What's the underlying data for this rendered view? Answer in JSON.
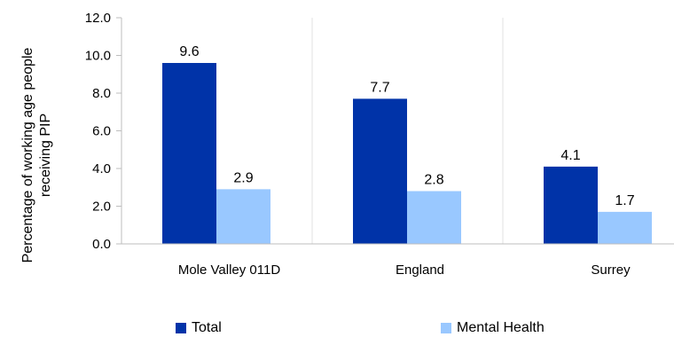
{
  "chart_data": {
    "type": "bar",
    "title": "",
    "xlabel": "",
    "ylabel_lines": [
      "Percentage of working age people",
      "receiving PIP"
    ],
    "categories": [
      "Mole Valley 011D",
      "England",
      "Surrey"
    ],
    "ylim": [
      0,
      12
    ],
    "yticks": [
      "0.0",
      "2.0",
      "4.0",
      "6.0",
      "8.0",
      "10.0",
      "12.0"
    ],
    "series": [
      {
        "name": "Total",
        "values": [
          9.6,
          7.7,
          4.1
        ],
        "labels": [
          "9.6",
          "7.7",
          "4.1"
        ],
        "color": "#0033a8"
      },
      {
        "name": "Mental Health",
        "values": [
          2.9,
          2.8,
          1.7
        ],
        "labels": [
          "2.9",
          "2.8",
          "1.7"
        ],
        "color": "#99c8ff"
      }
    ],
    "grid": "vertical separators",
    "legend_position": "bottom"
  }
}
